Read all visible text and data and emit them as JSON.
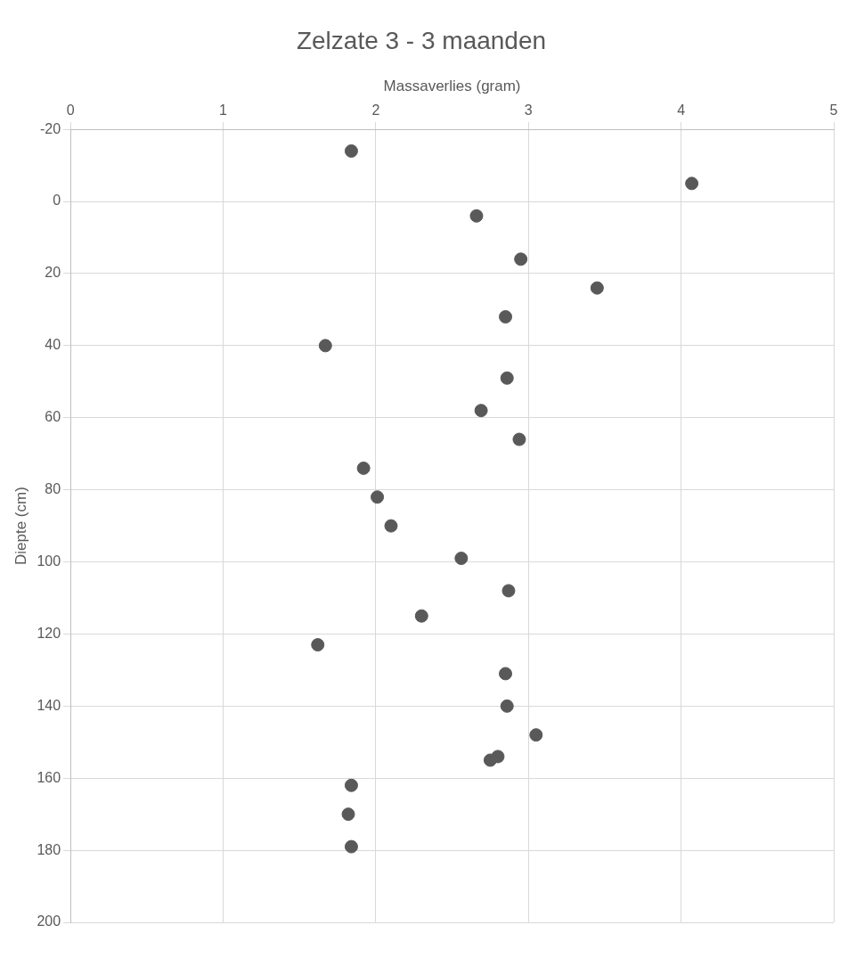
{
  "chart_data": {
    "type": "scatter",
    "title": "Zelzate 3 - 3 maanden",
    "xlabel": "Massaverlies (gram)",
    "ylabel": "Diepte (cm)",
    "series": [
      {
        "color": "#595959",
        "x": [
          1.84,
          4.07,
          2.66,
          2.95,
          3.45,
          2.85,
          1.67,
          2.86,
          2.69,
          2.94,
          1.92,
          2.01,
          2.1,
          2.56,
          2.87,
          2.3,
          1.62,
          2.85,
          2.86,
          3.05,
          2.8,
          2.75,
          1.84,
          1.82,
          1.84
        ],
        "values": [
          -14,
          -5,
          4,
          16,
          24,
          32,
          40,
          49,
          58,
          66,
          74,
          82,
          90,
          99,
          108,
          115,
          123,
          131,
          140,
          148,
          154,
          155,
          162,
          170,
          179
        ]
      }
    ],
    "xlim": [
      0,
      5
    ],
    "xticks": [
      0,
      1,
      2,
      3,
      4,
      5
    ],
    "ylim": [
      200,
      -20
    ],
    "yticks": [
      -20,
      0,
      20,
      40,
      60,
      80,
      100,
      120,
      140,
      160,
      180,
      200
    ],
    "grid": true,
    "legend": false,
    "marker": "circle"
  }
}
